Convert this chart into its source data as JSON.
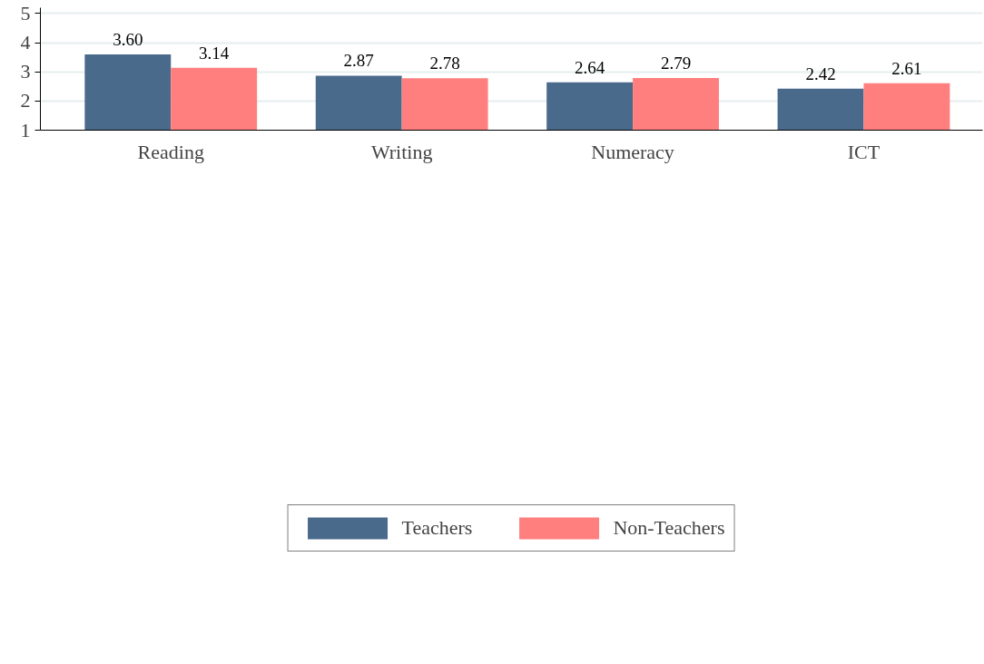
{
  "chart_data": {
    "type": "bar",
    "categories": [
      "Reading",
      "Writing",
      "Numeracy",
      "ICT"
    ],
    "series": [
      {
        "name": "Teachers",
        "color": "#4a6a8c",
        "values": [
          3.6,
          2.87,
          2.64,
          2.42
        ],
        "value_labels": [
          "3.60",
          "2.87",
          "2.64",
          "2.42"
        ]
      },
      {
        "name": "Non-Teachers",
        "color": "#ff7f7f",
        "values": [
          3.14,
          2.78,
          2.79,
          2.61
        ],
        "value_labels": [
          "3.14",
          "2.78",
          "2.79",
          "2.61"
        ]
      }
    ],
    "ylim": [
      1,
      5.2
    ],
    "yticks": [
      1,
      2,
      3,
      4,
      5
    ],
    "grid": "y",
    "legend": "bottom"
  }
}
